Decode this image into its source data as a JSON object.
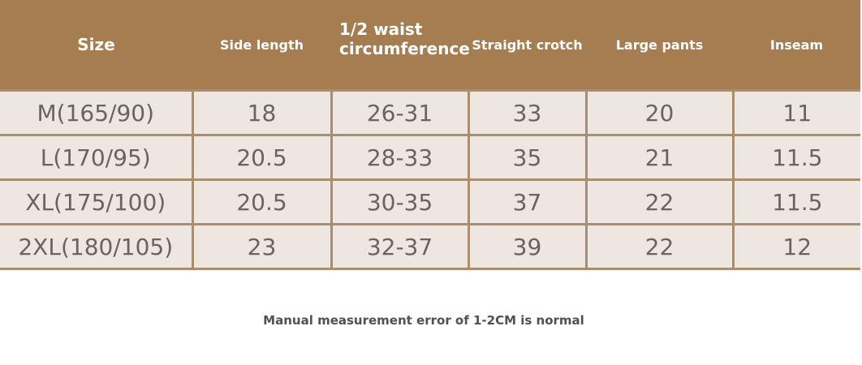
{
  "table": {
    "header": [
      "Size",
      "Side length",
      "1/2 waist circumference",
      "Straight crotch",
      "Large pants",
      "Inseam"
    ],
    "rows": [
      [
        "M(165/90)",
        18,
        "26-31",
        33,
        20,
        11
      ],
      [
        "L(170/95)",
        20.5,
        "28-33",
        35,
        21,
        11.5
      ],
      [
        "XL(175/100)",
        20.5,
        "30-35",
        37,
        22,
        11.5
      ],
      [
        "2XL(180/105)",
        23,
        "32-37",
        39,
        22,
        12
      ]
    ]
  },
  "note": "Manual measurement error of 1-2CM is normal"
}
